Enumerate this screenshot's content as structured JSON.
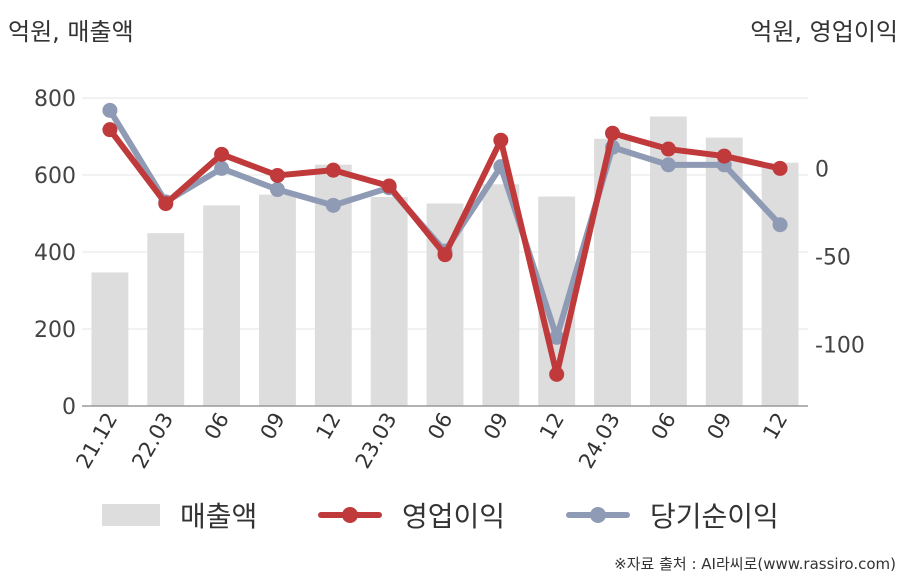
{
  "units": {
    "left": "억원, 매출액",
    "right": "억원, 영업이익"
  },
  "chart_data": {
    "type": "bar+line",
    "categories": [
      "21.12",
      "22.03",
      "06",
      "09",
      "12",
      "23.03",
      "06",
      "09",
      "12",
      "24.03",
      "06",
      "09",
      "12"
    ],
    "left_axis": {
      "ylim": [
        0,
        800
      ],
      "ticks": [
        0,
        200,
        400,
        600,
        800
      ]
    },
    "right_axis": {
      "ylim": [
        -135,
        40
      ],
      "ticks": [
        -100,
        -50,
        0
      ]
    },
    "grid": true,
    "legend_position": "bottom",
    "series": [
      {
        "name": "매출액",
        "type": "bar",
        "axis": "left",
        "color": "#dddddd",
        "values": [
          347,
          449,
          521,
          549,
          627,
          543,
          526,
          576,
          544,
          694,
          752,
          697,
          632
        ]
      },
      {
        "name": "영업이익",
        "type": "line",
        "axis": "right",
        "color": "#c0393b",
        "values": [
          22,
          -20,
          8,
          -4,
          -1,
          -10,
          -49,
          16,
          -117,
          20,
          11,
          7,
          0
        ]
      },
      {
        "name": "당기순이익",
        "type": "line",
        "axis": "right",
        "color": "#8f9bb5",
        "values": [
          33,
          -19,
          0,
          -12,
          -21,
          -11,
          -47,
          1,
          -96,
          12,
          2,
          2,
          -32
        ]
      }
    ]
  },
  "source": "※자료 출처 : AI라씨로(www.rassiro.com)"
}
